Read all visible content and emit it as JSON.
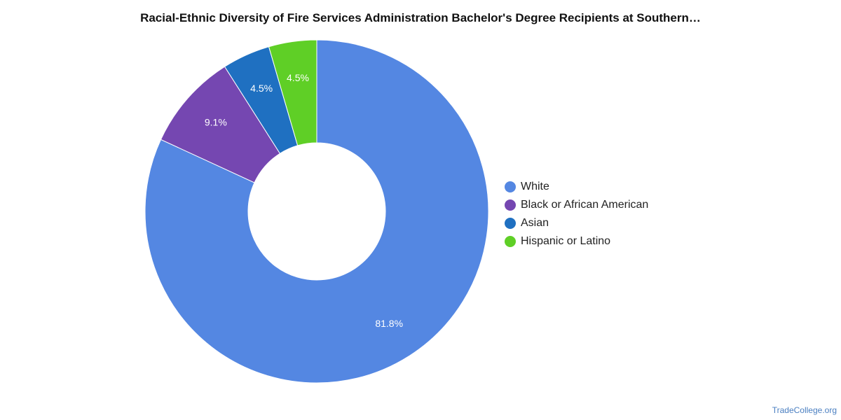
{
  "chart_data": {
    "type": "pie",
    "title": "Racial-Ethnic Diversity of Fire Services Administration Bachelor's Degree Recipients at Southern…",
    "categories": [
      "White",
      "Black or African American",
      "Asian",
      "Hispanic or Latino"
    ],
    "values": [
      81.8,
      9.1,
      4.5,
      4.5
    ],
    "labels": [
      "81.8%",
      "9.1%",
      "4.5%",
      "4.5%"
    ],
    "colors": [
      "#5487e2",
      "#7547b1",
      "#1f70c1",
      "#5fcf26"
    ],
    "donut": true,
    "legend_position": "right"
  },
  "footer": {
    "credit": "TradeCollege.org"
  }
}
